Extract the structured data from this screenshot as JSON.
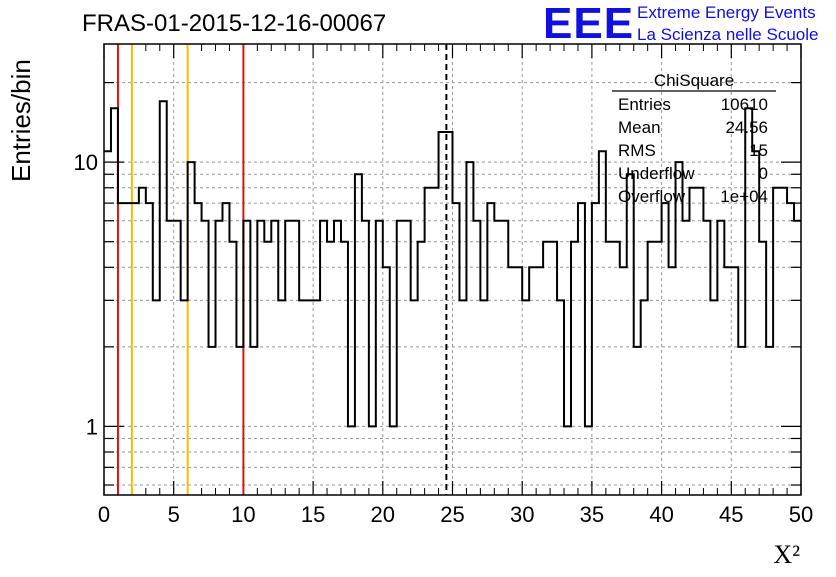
{
  "header": {
    "run_id": "FRAS-01-2015-12-16-00067"
  },
  "branding": {
    "logo_text": "EEE",
    "line1": "Extreme Energy Events",
    "line2": "La Scienza nelle Scuole"
  },
  "stats_box": {
    "title": "ChiSquare",
    "rows": [
      {
        "label": "Entries",
        "value": "10610"
      },
      {
        "label": "Mean",
        "value": "24.56"
      },
      {
        "label": "RMS",
        "value": "15"
      },
      {
        "label": "Underflow",
        "value": "0"
      },
      {
        "label": "Overflow",
        "value": "1e+04"
      }
    ]
  },
  "colors": {
    "histogram": "#000000",
    "red_lines": "#e01010",
    "yellow_lines": "#f0c000",
    "mean_line": "#000000",
    "grid": "#999999"
  },
  "chart_data": {
    "type": "histogram",
    "title": "FRAS-01-2015-12-16-00067",
    "xlabel": "X²",
    "ylabel": "Entries/bin",
    "xlim": [
      0,
      50
    ],
    "ylog": true,
    "ylim": [
      0.55,
      28
    ],
    "x_ticks": [
      0,
      5,
      10,
      15,
      20,
      25,
      30,
      35,
      40,
      45,
      50
    ],
    "y_ticks": [
      1,
      10
    ],
    "grid": true,
    "bin_width": 0.5,
    "values": [
      11,
      16,
      7,
      7,
      7,
      8,
      7,
      3,
      17,
      6,
      6,
      3,
      10,
      7,
      6,
      2,
      6,
      7,
      5,
      2,
      6,
      2,
      6,
      5,
      6,
      3,
      6,
      6,
      3,
      3,
      3,
      6,
      5,
      6,
      5,
      1,
      9,
      6,
      1,
      6,
      4,
      1,
      6,
      6,
      3,
      5,
      8,
      8,
      13,
      13,
      7,
      3,
      10,
      6,
      3,
      7,
      6,
      6,
      4,
      4,
      3,
      4,
      4,
      5,
      5,
      3,
      1,
      5,
      7,
      1,
      7,
      11,
      5,
      5,
      4,
      9,
      2,
      3,
      5,
      5,
      7,
      4,
      10,
      6,
      8,
      8,
      6,
      3,
      6,
      4,
      4,
      2,
      16,
      11,
      5,
      2,
      8,
      8,
      7,
      6
    ],
    "vertical_lines": [
      {
        "x": 1,
        "color": "red"
      },
      {
        "x": 2,
        "color": "yellow"
      },
      {
        "x": 6,
        "color": "yellow"
      },
      {
        "x": 10,
        "color": "red"
      },
      {
        "x": 24.56,
        "color": "black",
        "style": "dashed"
      }
    ]
  }
}
